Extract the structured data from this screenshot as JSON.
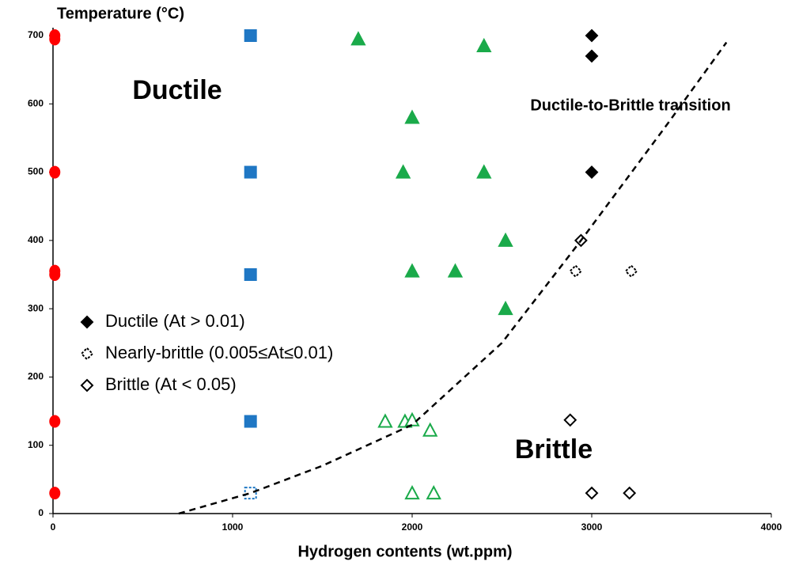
{
  "chart_data": {
    "type": "scatter",
    "xlabel": "Hydrogen contents (wt.ppm)",
    "ylabel": "Temperature (°C)",
    "xlim": [
      0,
      4000
    ],
    "xticks": [
      0,
      1000,
      2000,
      3000,
      4000
    ],
    "ylim": [
      0,
      700
    ],
    "yticks": [
      0,
      100,
      200,
      300,
      400,
      500,
      600,
      700
    ],
    "grid": false,
    "annotations": [
      "Ductile",
      "Ductile-to-Brittle transition",
      "Brittle"
    ],
    "series": [
      {
        "marker": "circle",
        "color": "#ff0000",
        "filled": true,
        "x": [
          10,
          10,
          10,
          10,
          10,
          10,
          10
        ],
        "values": [
          700,
          695,
          500,
          355,
          350,
          135,
          30
        ]
      },
      {
        "marker": "square",
        "color": "#1f77c4",
        "filled": true,
        "x": [
          1100,
          1100,
          1100,
          1100
        ],
        "values": [
          700,
          500,
          350,
          135
        ]
      },
      {
        "marker": "square",
        "color": "#1f77c4",
        "filled": false,
        "dashed": true,
        "x": [
          1100
        ],
        "values": [
          30
        ]
      },
      {
        "marker": "triangle",
        "color": "#1aaa4a",
        "filled": true,
        "x": [
          1700,
          2400,
          2000,
          1950,
          2400,
          2520,
          2000,
          2240,
          2520
        ],
        "values": [
          695,
          685,
          580,
          500,
          500,
          400,
          355,
          355,
          300
        ]
      },
      {
        "marker": "triangle",
        "color": "#1aaa4a",
        "filled": false,
        "x": [
          1850,
          1960,
          2000,
          2100,
          2000,
          2120
        ],
        "values": [
          135,
          135,
          137,
          122,
          30,
          30
        ]
      },
      {
        "name": "Ductile (At > 0.01)",
        "marker": "diamond",
        "color": "#000000",
        "filled": true,
        "x": [
          3000,
          3000,
          3000
        ],
        "values": [
          700,
          670,
          500
        ]
      },
      {
        "name": "Nearly-brittle (0.005≤At≤0.01)",
        "marker": "diamond",
        "color": "#000000",
        "filled": false,
        "dashed": true,
        "x": [
          2910,
          3220
        ],
        "values": [
          355,
          355
        ]
      },
      {
        "name": "Brittle (At < 0.05)",
        "marker": "diamond",
        "color": "#000000",
        "filled": false,
        "x": [
          2940,
          2880,
          3000,
          3210
        ],
        "values": [
          400,
          137,
          30,
          30
        ]
      },
      {
        "marker": "line",
        "color": "#000000",
        "dashed": true,
        "x": [
          700,
          1100,
          1500,
          2000,
          2500,
          2940,
          3420,
          3750
        ],
        "values": [
          0,
          30,
          70,
          130,
          250,
          400,
          570,
          690
        ]
      }
    ]
  }
}
